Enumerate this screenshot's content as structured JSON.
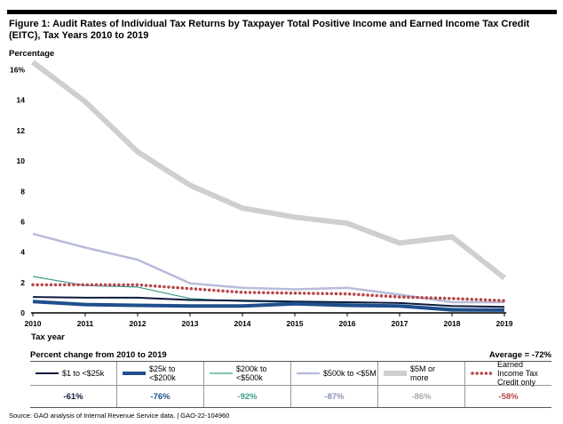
{
  "title": "Figure 1: Audit Rates of Individual Tax Returns by Taxpayer Total Positive Income and Earned Income Tax Credit (EITC), Tax Years 2010 to 2019",
  "y_axis_label": "Percentage",
  "x_axis_label": "Tax year",
  "percent_change_title": "Percent change from 2010 to 2019",
  "average_label": "Average = -72%",
  "source": "Source: GAO analysis of Internal Revenue Service data.  |  GAO-22-104960",
  "chart_data": {
    "type": "line",
    "title": "Audit Rates of Individual Tax Returns by Taxpayer Total Positive Income and Earned Income Tax Credit (EITC), Tax Years 2010 to 2019",
    "xlabel": "Tax year",
    "ylabel": "Percentage",
    "x": [
      "2010",
      "2011",
      "2012",
      "2013",
      "2014",
      "2015",
      "2016",
      "2017",
      "2018",
      "2019"
    ],
    "ylim": [
      0,
      16.5
    ],
    "yticks": [
      "0",
      "2",
      "4",
      "6",
      "8",
      "10",
      "12",
      "14",
      "16%"
    ],
    "grid": false,
    "series": [
      {
        "name": "$1 to <$25k",
        "color": "#0d1b3e",
        "values": [
          1.05,
          1.0,
          1.0,
          0.85,
          0.8,
          0.75,
          0.7,
          0.65,
          0.45,
          0.4
        ]
      },
      {
        "name": "$25k to <$200k",
        "color": "#1f4e8c",
        "values": [
          0.75,
          0.55,
          0.5,
          0.45,
          0.45,
          0.6,
          0.5,
          0.45,
          0.2,
          0.18
        ]
      },
      {
        "name": "$200k to <$500k",
        "color": "#3a9a8a",
        "values": [
          2.4,
          1.8,
          1.7,
          0.95,
          0.75,
          0.7,
          0.6,
          0.5,
          0.3,
          0.2
        ]
      },
      {
        "name": "$500k to <$5M",
        "color": "#b8bcd8",
        "values": [
          5.2,
          4.3,
          3.5,
          1.95,
          1.65,
          1.55,
          1.65,
          1.2,
          0.7,
          0.7
        ]
      },
      {
        "name": "$5M or more",
        "color": "#cfcfcf",
        "values": [
          16.5,
          13.9,
          10.6,
          8.4,
          6.9,
          6.3,
          5.9,
          4.6,
          5.0,
          2.3
        ]
      },
      {
        "name": "Earned Income Tax Credit only",
        "color": "#b7474a",
        "values": [
          1.85,
          1.85,
          1.85,
          1.6,
          1.35,
          1.3,
          1.25,
          1.05,
          0.95,
          0.8
        ]
      }
    ],
    "percent_change": [
      "-61%",
      "-76%",
      "-92%",
      "-87%",
      "-86%",
      "-58%"
    ]
  }
}
